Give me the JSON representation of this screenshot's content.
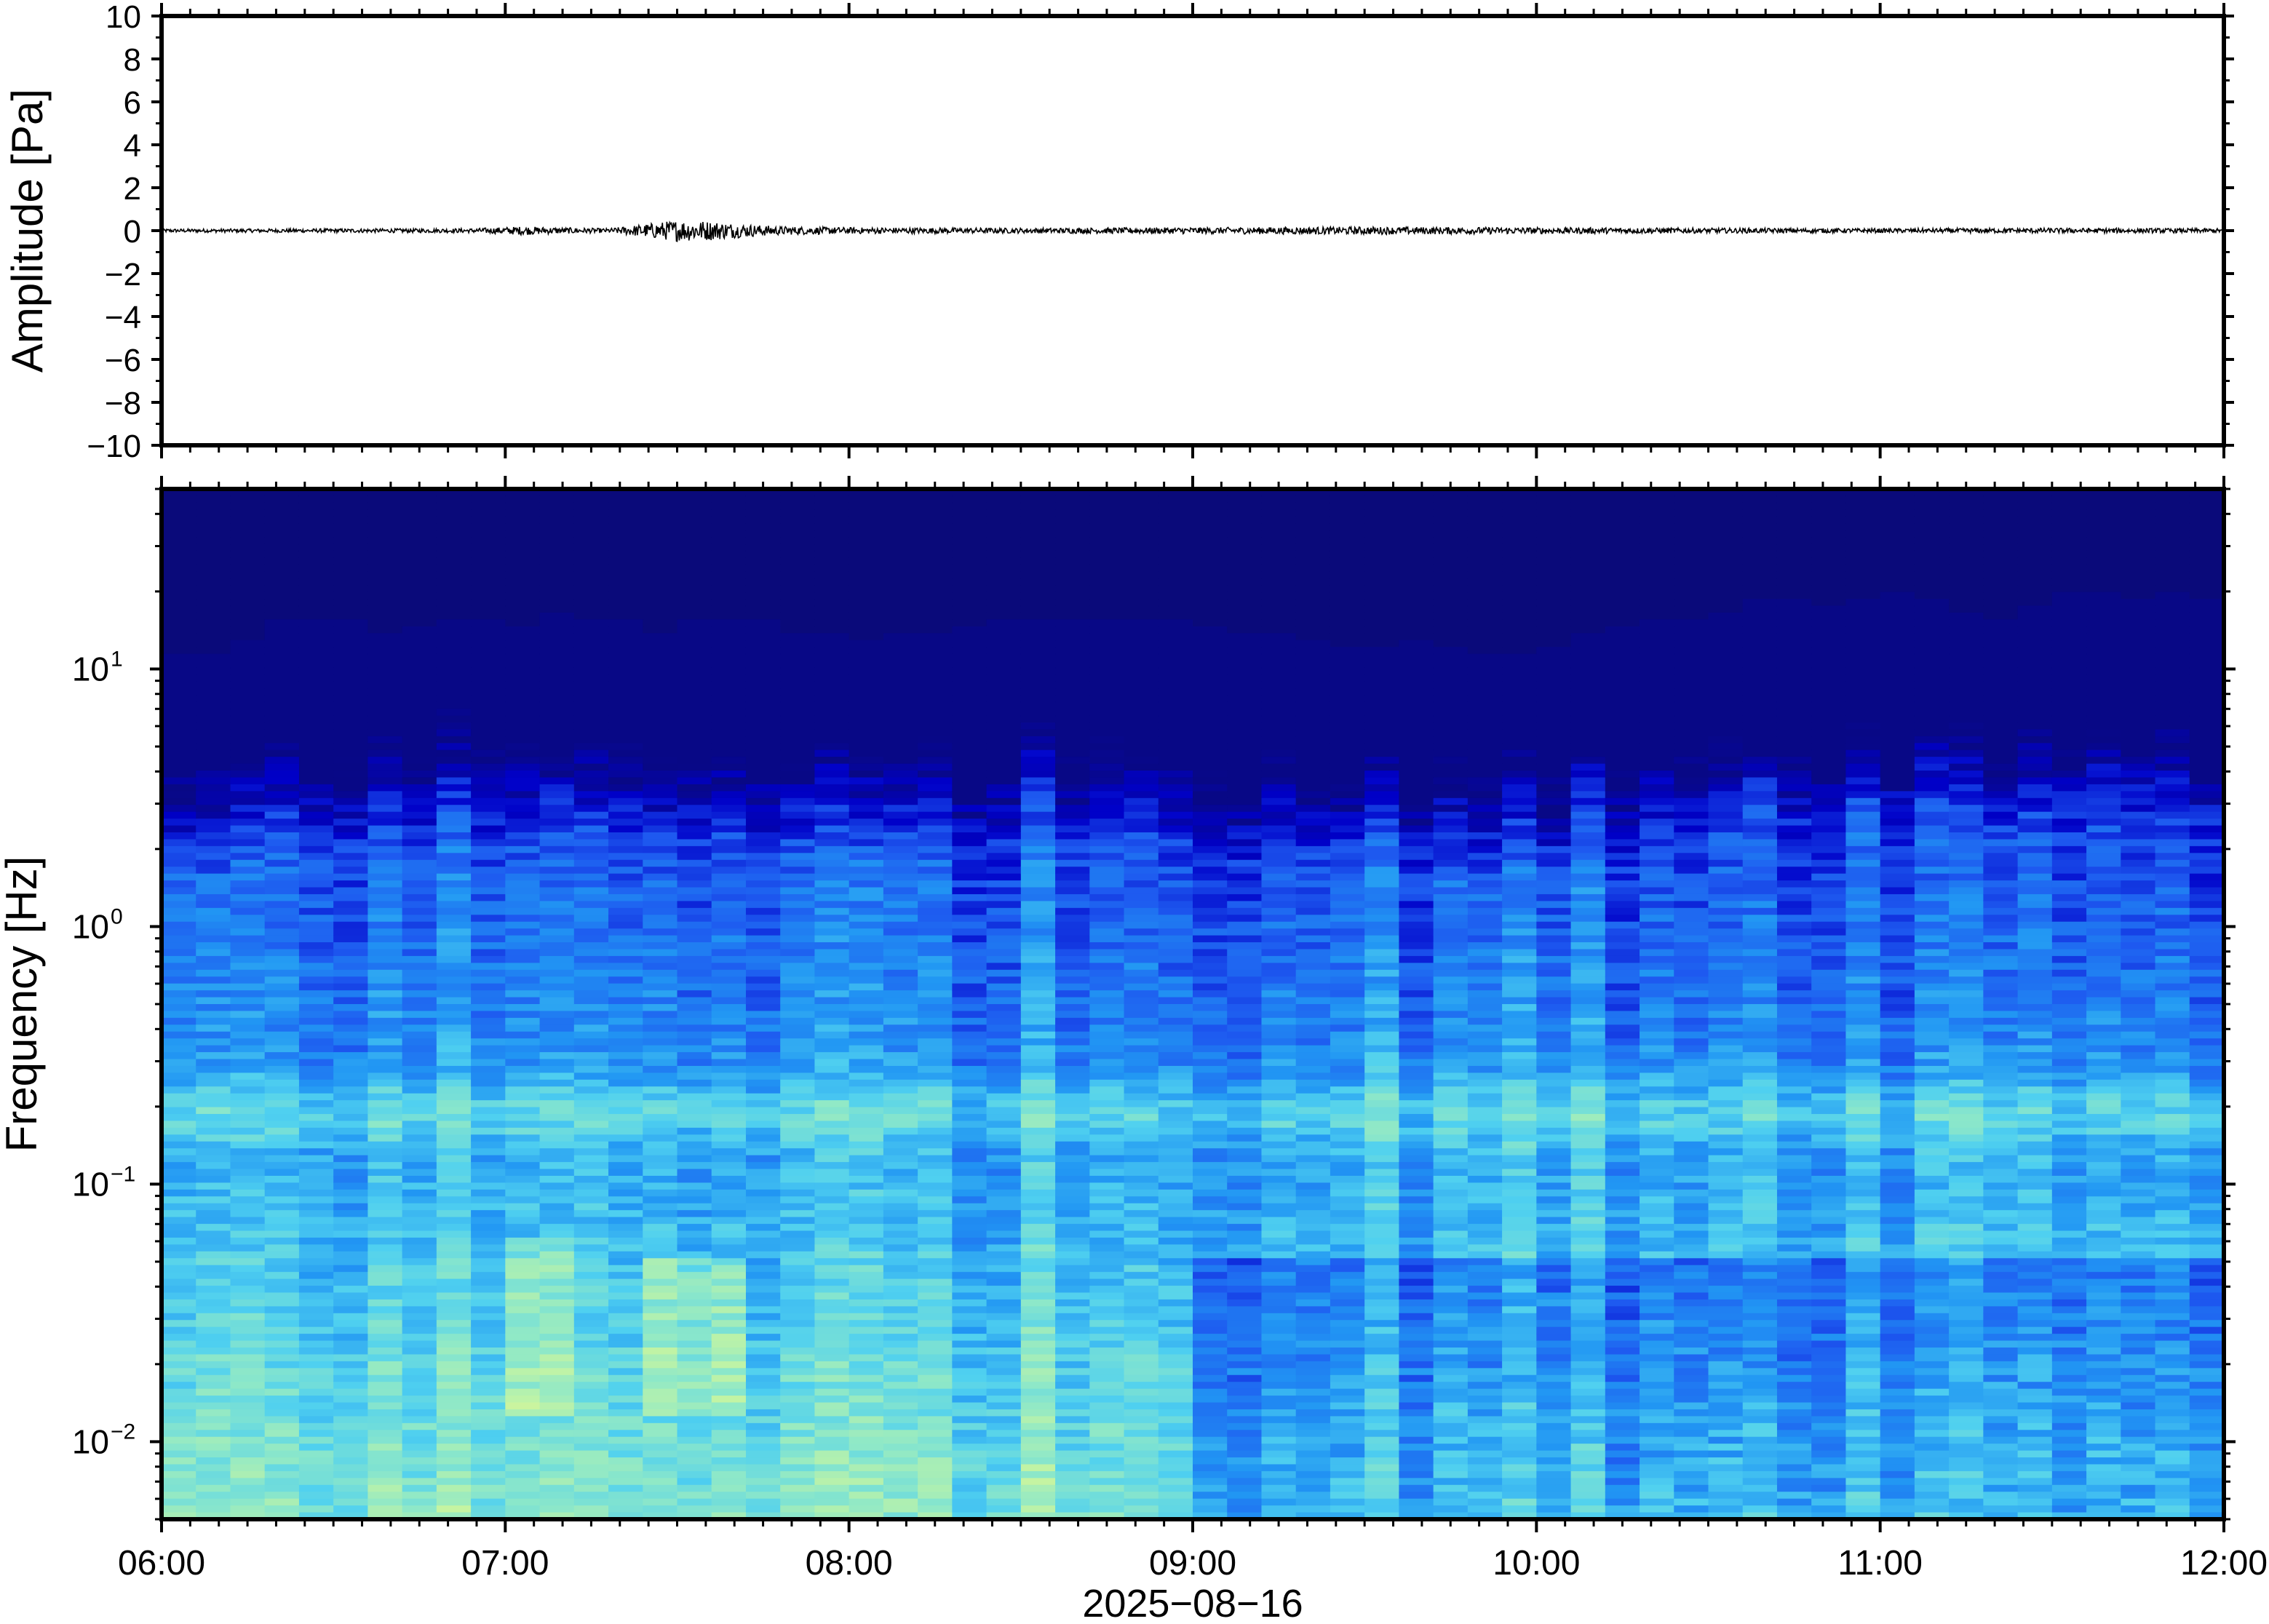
{
  "chart_data": [
    {
      "type": "line",
      "panel": "waveform",
      "ylabel": "Amplitude [Pa]",
      "ylim": [
        -10,
        10
      ],
      "yticks": [
        10,
        8,
        6,
        4,
        2,
        0,
        -2,
        -4,
        -6,
        -8,
        -10
      ],
      "ytick_labels": [
        "10",
        "8",
        "6",
        "4",
        "2",
        "0",
        "−2",
        "−4",
        "−6",
        "−8",
        "−10"
      ],
      "xlim_hours": [
        6,
        12
      ],
      "series": [
        {
          "baseline": 0,
          "envelope_x_hours": [
            6.0,
            6.5,
            6.9,
            7.05,
            7.15,
            7.3,
            7.35,
            7.45,
            7.5,
            7.6,
            7.7,
            7.8,
            8.0,
            8.5,
            9.0,
            9.5,
            10.0,
            10.5,
            11.0,
            11.5,
            12.0
          ],
          "envelope_amplitude_pa": [
            0.08,
            0.09,
            0.1,
            0.2,
            0.15,
            0.1,
            0.2,
            0.4,
            0.5,
            0.45,
            0.3,
            0.2,
            0.15,
            0.12,
            0.15,
            0.18,
            0.15,
            0.12,
            0.1,
            0.12,
            0.1
          ]
        }
      ]
    },
    {
      "type": "heatmap",
      "panel": "spectrogram",
      "ylabel": "Frequency [Hz]",
      "yscale": "log",
      "ylim": [
        0.005,
        50
      ],
      "yticks": [
        {
          "base": "10",
          "exp": "1",
          "value": 10
        },
        {
          "base": "10",
          "exp": "0",
          "value": 1
        },
        {
          "base": "10",
          "exp": "−1",
          "value": 0.1
        },
        {
          "base": "10",
          "exp": "−2",
          "value": 0.01
        }
      ],
      "xlabel": "2025−08−16",
      "x_tick_labels": [
        "06:00",
        "07:00",
        "08:00",
        "09:00",
        "10:00",
        "11:00",
        "12:00"
      ],
      "xlim_hours": [
        6,
        12
      ],
      "colormap": [
        "#0a0a7a",
        "#0000c8",
        "#1e5af0",
        "#2196f3",
        "#4fd0f0",
        "#8ee8c8",
        "#c8f5a0",
        "#fae678",
        "#fac864"
      ],
      "upper_cutoff_hz": [
        7.5,
        7.5,
        8.5,
        10.5,
        10,
        10,
        9,
        9.5,
        10.5,
        10,
        9.5,
        11,
        10,
        10,
        9,
        10.5,
        10,
        10,
        9,
        9,
        8.5,
        9,
        9,
        9.5,
        10.5,
        10,
        10,
        10.5,
        10,
        10,
        9.5,
        9,
        9,
        8.5,
        8,
        8,
        8.5,
        8,
        7.5,
        7.5,
        8,
        9,
        9.5,
        10,
        10.5,
        11,
        12.5,
        12.5,
        11.5,
        12.5,
        13,
        12.5,
        11,
        10.5,
        11.5,
        13,
        13.5,
        12.5,
        13,
        12
      ]
    }
  ]
}
